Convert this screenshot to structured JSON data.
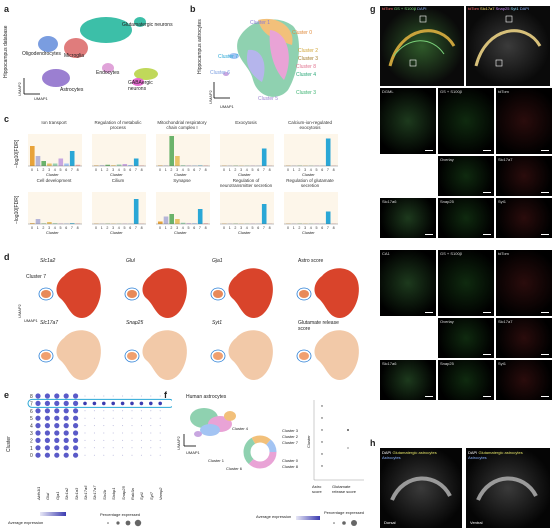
{
  "panels": {
    "a": {
      "label": "a",
      "side_label": "Hippocampus database",
      "clusters": [
        "Glutamatergic neurons",
        "Oligodendrocytes",
        "Microglia",
        "Astrocytes",
        "Endocytes",
        "GABAergic neurons"
      ],
      "axis_x": "UMAP1",
      "axis_y": "UMAP2"
    },
    "b": {
      "label": "b",
      "side_label": "Hippocampus astrocytes",
      "clusters": [
        "Cluster 1",
        "Cluster 0",
        "Cluster 2",
        "Cluster 3",
        "Cluster 8",
        "Cluster 4",
        "Cluster 7",
        "Cluster 6",
        "Cluster 5",
        "Cluster 3"
      ],
      "axis_x": "UMAP1",
      "axis_y": "UMAP2"
    },
    "c": {
      "label": "c",
      "ylabel": "−log10[FDR]",
      "xlabel": "Cluster",
      "xticks": [
        "0",
        "1",
        "2",
        "3",
        "4",
        "5",
        "6",
        "7",
        "8"
      ]
    },
    "d": {
      "label": "d",
      "axis_x": "UMAP1",
      "axis_y": "UMAP2",
      "cluster_tag": "Cluster 7",
      "genes": [
        "Slc1a2",
        "Glul",
        "Gja1",
        "Astro score",
        "Slc17a7",
        "Snap25",
        "Syt1",
        "Glutamate release score"
      ]
    },
    "e": {
      "label": "e",
      "ylabel": "Cluster",
      "rows": [
        "8",
        "7",
        "6",
        "5",
        "4",
        "3",
        "2",
        "1",
        "0"
      ],
      "cols": [
        "Aldh1l1",
        "Glul",
        "Gja1",
        "Slc1a2",
        "Slc1a3",
        "Slc17a6",
        "Slc17a7",
        "Stx1b",
        "Stxbp1",
        "Snap25",
        "Rab3a",
        "Syt1",
        "Syt7",
        "Vamp2"
      ],
      "legend_avg": "Average expression",
      "legend_pct": "Percentage expressed",
      "avg_ticks": [
        "0",
        "1",
        "2",
        "3"
      ],
      "pct_ticks": [
        "0",
        "25",
        "50",
        "75"
      ]
    },
    "f": {
      "label": "f",
      "title": "Human astrocytes",
      "axis_x": "UMAP1",
      "axis_y": "UMAP2",
      "donut_labels": [
        "Cluster 4",
        "Cluster 3",
        "Cluster 2",
        "Cluster 7",
        "Cluster 0",
        "Cluster 8",
        "Cluster 6",
        "Cluster 1"
      ],
      "legend_avg": "Average expression",
      "legend_pct": "Percentage expressed",
      "avg_ticks": [
        "0",
        "2"
      ],
      "pct_ticks": [
        "0",
        "50",
        "100"
      ],
      "dot_ylabel": "Cluster",
      "dot_cols": [
        "Astro score",
        "Glutamate release score"
      ]
    },
    "g": {
      "label": "g",
      "header": [
        "tdTom",
        "GS + S100β",
        "DAPI",
        "tdTom",
        "Slc17a7",
        "Snap25",
        "Syt1",
        "DAPI"
      ],
      "regions": [
        "DGML",
        "CA1"
      ],
      "insets": [
        "1",
        "2"
      ],
      "tiles_row1": [
        "DGML",
        "GS + S100β",
        "tdTom"
      ],
      "tiles_row2": [
        "Overlay",
        "Slc17a7"
      ],
      "tiles_row3": [
        "Slc17a6",
        "Snap25",
        "Syt1"
      ],
      "tiles_row4": [
        "CA1",
        "GS + S100β",
        "tdTom"
      ],
      "tiles_row5": [
        "Overlay",
        "Slc17a7"
      ],
      "tiles_row6": [
        "Slc17a6",
        "Snap25",
        "Syt1"
      ]
    },
    "h": {
      "label": "h",
      "left_title": [
        "DAPI",
        "Glutamatergic astrocytes",
        "Astrocytes"
      ],
      "right_title": [
        "DAPI",
        "Glutamatergic astrocytes",
        "Astrocytes"
      ],
      "left_region": "Dorsal",
      "right_region": "Ventral"
    }
  },
  "chart_data": [
    {
      "type": "bar",
      "title": "Ion transport",
      "categories": [
        "0",
        "1",
        "2",
        "3",
        "4",
        "5",
        "6",
        "7",
        "8"
      ],
      "values": [
        8,
        4,
        2,
        1,
        1,
        3,
        1,
        6,
        0.5
      ],
      "highlight": "7",
      "xlabel": "Cluster"
    },
    {
      "type": "bar",
      "title": "Regulation of metabolic process",
      "categories": [
        "0",
        "1",
        "2",
        "3",
        "4",
        "5",
        "6",
        "7",
        "8"
      ],
      "values": [
        0.2,
        0.3,
        0.5,
        0.3,
        0.6,
        0.8,
        0.4,
        3,
        0.2
      ],
      "highlight": "7",
      "xlabel": "Cluster"
    },
    {
      "type": "bar",
      "title": "Mitochondrial respiratory chain complex I",
      "categories": [
        "0",
        "1",
        "2",
        "3",
        "4",
        "5",
        "6",
        "7",
        "8"
      ],
      "values": [
        0.2,
        0.2,
        12,
        4,
        0.3,
        0.2,
        0.2,
        0.2,
        0.2
      ],
      "highlight": "7",
      "xlabel": "Cluster"
    },
    {
      "type": "bar",
      "title": "Exocytosis",
      "categories": [
        "0",
        "1",
        "2",
        "3",
        "4",
        "5",
        "6",
        "7",
        "8"
      ],
      "values": [
        0,
        0,
        0,
        0,
        0,
        0,
        0,
        7,
        0
      ],
      "highlight": "7",
      "xlabel": "Cluster"
    },
    {
      "type": "bar",
      "title": "Calcium-ion-regulated exocytosis",
      "categories": [
        "0",
        "1",
        "2",
        "3",
        "4",
        "5",
        "6",
        "7",
        "8"
      ],
      "values": [
        0,
        0,
        0,
        0,
        0,
        0,
        0,
        11,
        0
      ],
      "highlight": "7",
      "xlabel": "Cluster"
    },
    {
      "type": "bar",
      "title": "Cell development",
      "categories": [
        "0",
        "1",
        "2",
        "3",
        "4",
        "5",
        "6",
        "7",
        "8"
      ],
      "values": [
        0.3,
        2,
        0.2,
        0.8,
        0.3,
        0.2,
        0.2,
        0.3,
        0.2
      ],
      "highlight": "7",
      "xlabel": "Cluster"
    },
    {
      "type": "bar",
      "title": "Cilium",
      "categories": [
        "0",
        "1",
        "2",
        "3",
        "4",
        "5",
        "6",
        "7",
        "8"
      ],
      "values": [
        0,
        0,
        0,
        0,
        0,
        0,
        0,
        10,
        0
      ],
      "highlight": "7",
      "xlabel": "Cluster"
    },
    {
      "type": "bar",
      "title": "Synapse",
      "categories": [
        "0",
        "1",
        "2",
        "3",
        "4",
        "5",
        "6",
        "7",
        "8"
      ],
      "values": [
        1,
        3,
        4,
        2,
        0.5,
        0.3,
        0.3,
        6,
        0.3
      ],
      "highlight": "7",
      "xlabel": "Cluster"
    },
    {
      "type": "bar",
      "title": "Regulation of neurotransmitter secretion",
      "categories": [
        "0",
        "1",
        "2",
        "3",
        "4",
        "5",
        "6",
        "7",
        "8"
      ],
      "values": [
        0,
        0,
        0,
        0,
        0,
        0,
        0,
        8,
        0
      ],
      "highlight": "7",
      "xlabel": "Cluster"
    },
    {
      "type": "bar",
      "title": "Regulation of glutamate secretion",
      "categories": [
        "0",
        "1",
        "2",
        "3",
        "4",
        "5",
        "6",
        "7",
        "8"
      ],
      "values": [
        0,
        0,
        0,
        0,
        0,
        0,
        0,
        5,
        0
      ],
      "highlight": "7",
      "xlabel": "Cluster"
    }
  ],
  "colors": {
    "c0": "#e8a33a",
    "c1": "#b5b5d8",
    "c2": "#6bb36b",
    "c3": "#e9c46a",
    "c4": "#9ad1b0",
    "c5": "#c8a6e0",
    "c6": "#a3c4f3",
    "c7": "#2aa7d6",
    "c8": "#f4a9a8",
    "highlight": "#2aa7d6"
  }
}
